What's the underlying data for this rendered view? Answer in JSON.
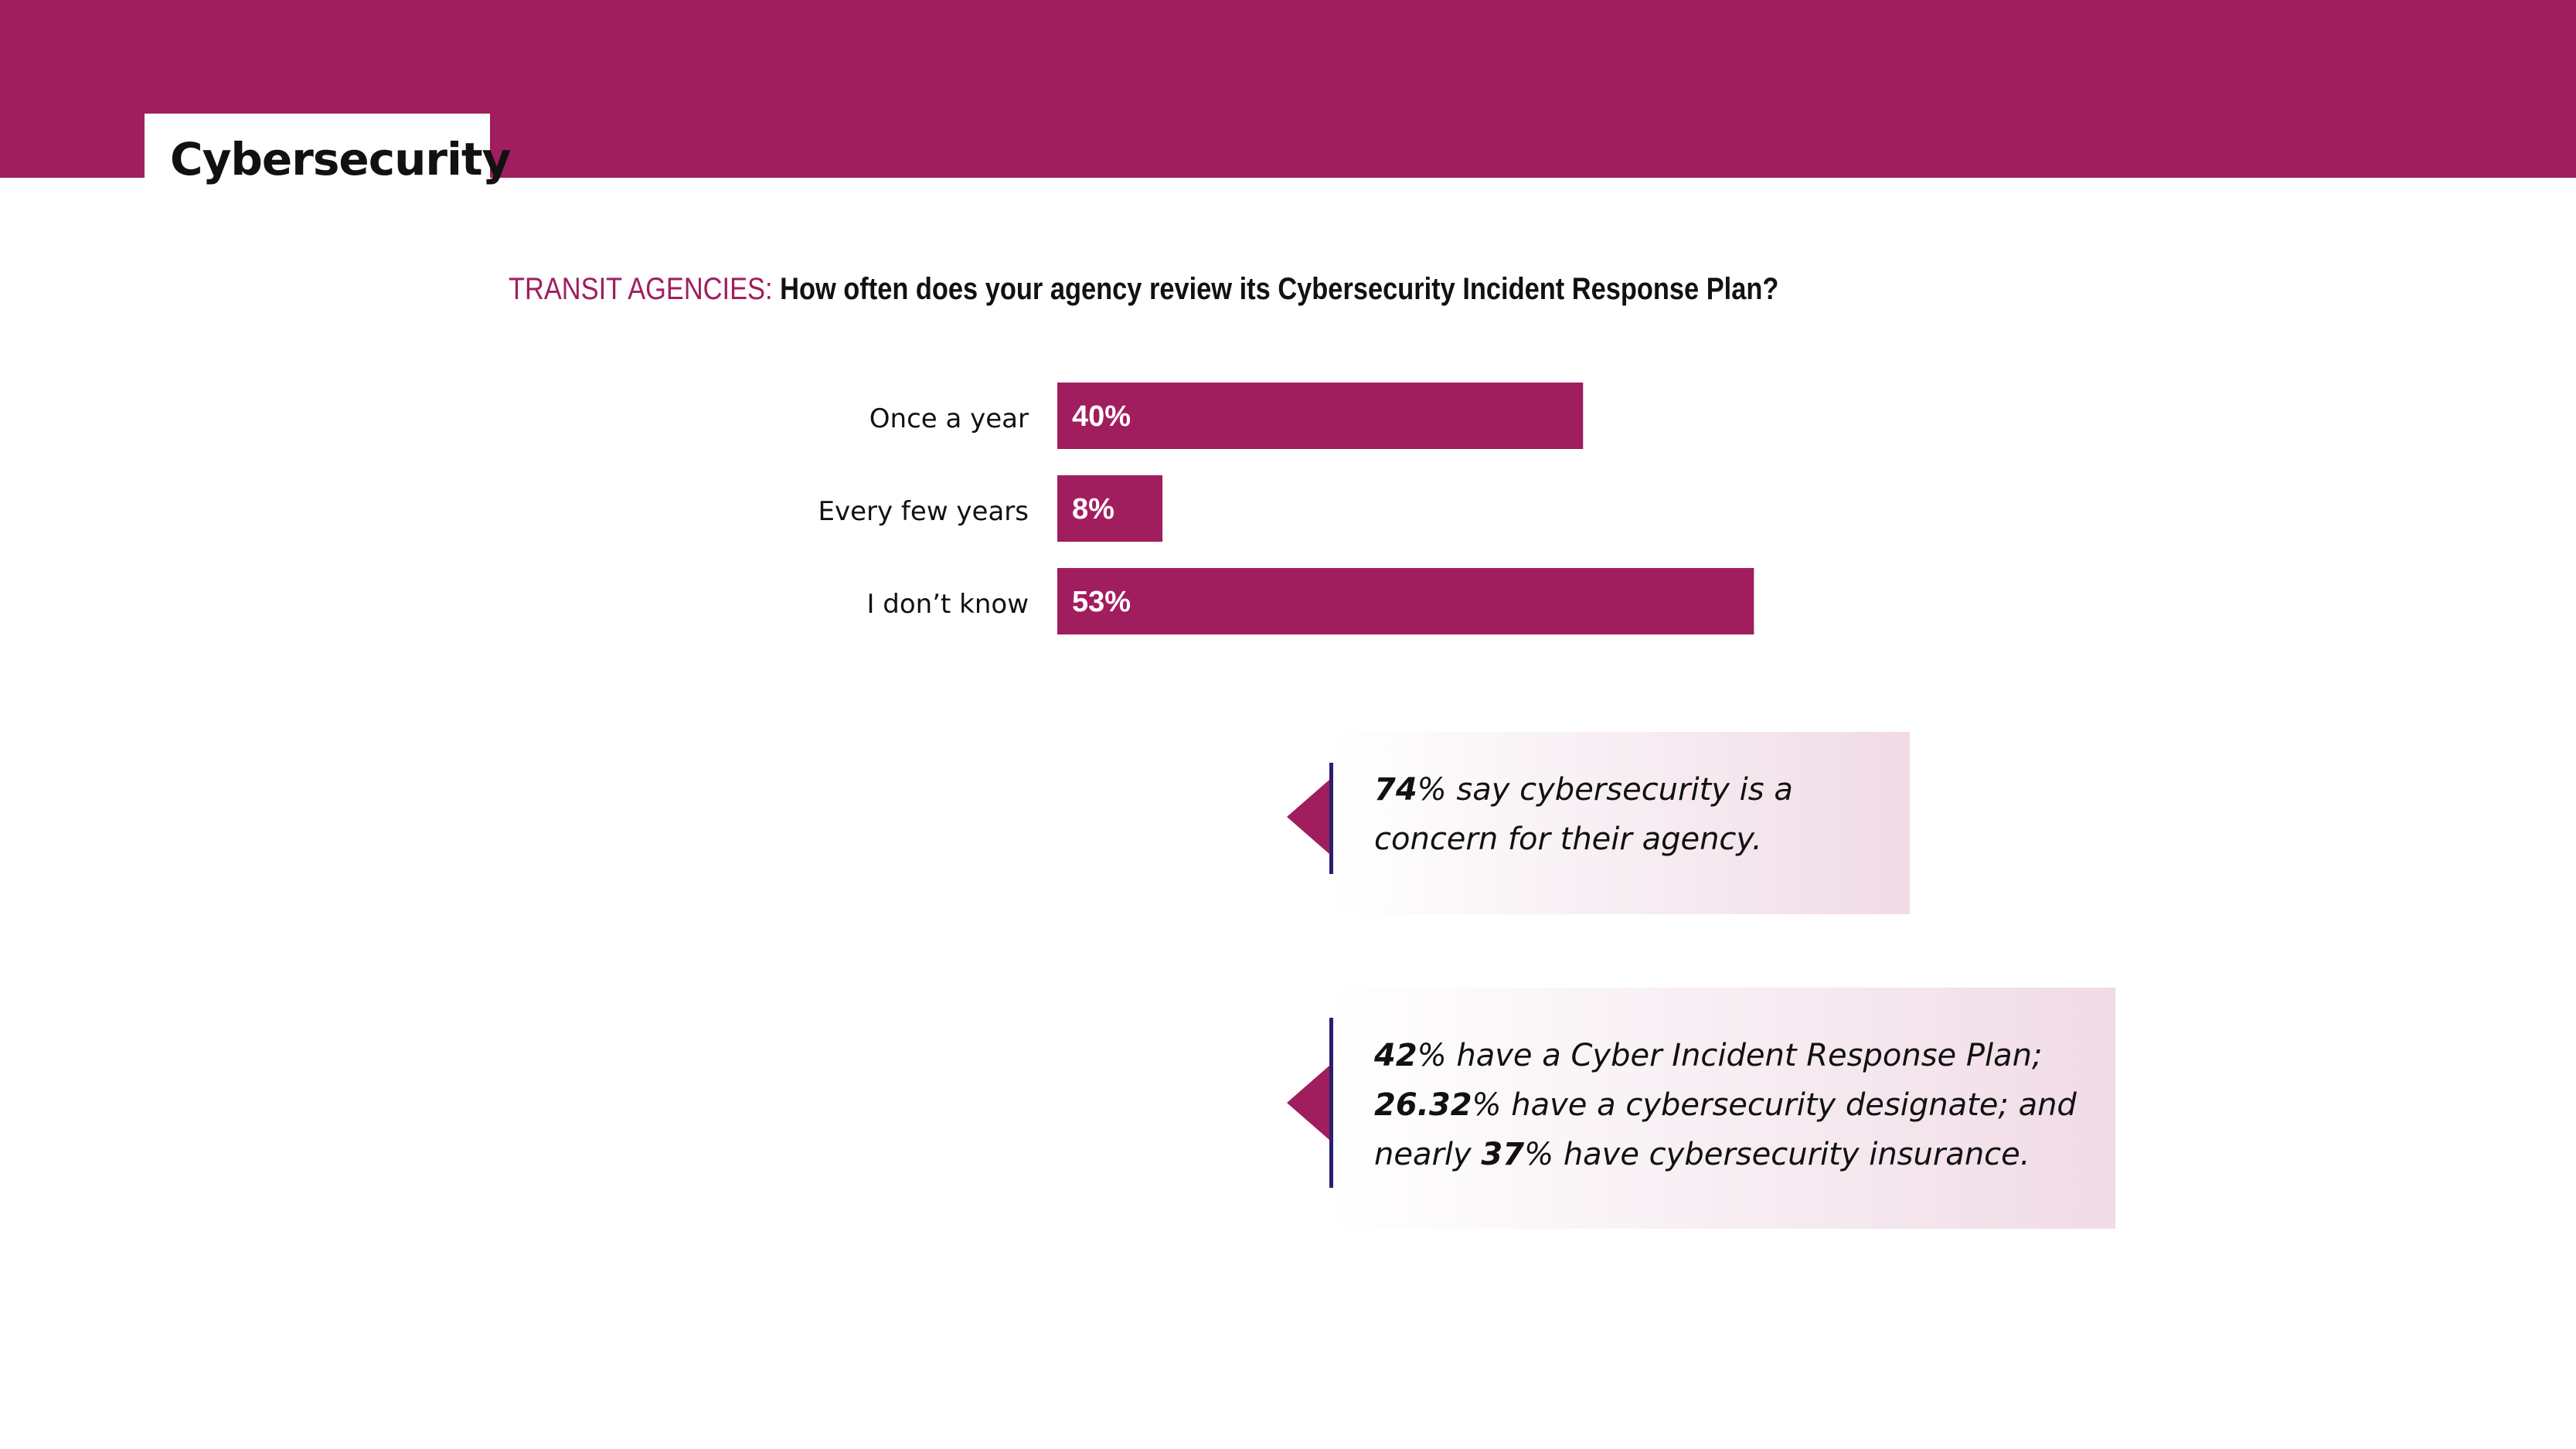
{
  "page": {
    "title": "Cybersecurity"
  },
  "colors": {
    "accent": "#a01e5e",
    "callout_line": "#2b1f6e",
    "text": "#111111"
  },
  "chart_data": {
    "type": "bar",
    "orientation": "horizontal",
    "title_prefix": "TRANSIT AGENCIES:",
    "title": "How often does your agency review its Cybersecurity Incident Response Plan?",
    "categories": [
      "Once a year",
      "Every few years",
      "I don’t know"
    ],
    "values": [
      40,
      8,
      53
    ],
    "value_labels": [
      "40%",
      "8%",
      "53%"
    ],
    "xlim": [
      0,
      53
    ],
    "grid": false,
    "legend": "none"
  },
  "callouts": [
    {
      "lines": [
        [
          {
            "bold": true,
            "text": "74"
          },
          {
            "bold": false,
            "text": "% say cybersecurity is a"
          }
        ],
        [
          {
            "bold": false,
            "text": "concern for their agency."
          }
        ]
      ]
    },
    {
      "lines": [
        [
          {
            "bold": true,
            "text": "42"
          },
          {
            "bold": false,
            "text": "% have a Cyber Incident Response Plan;"
          }
        ],
        [
          {
            "bold": true,
            "text": "26.32"
          },
          {
            "bold": false,
            "text": "% have a cybersecurity designate; and"
          }
        ],
        [
          {
            "bold": false,
            "text": "nearly "
          },
          {
            "bold": true,
            "text": "37"
          },
          {
            "bold": false,
            "text": "% have cybersecurity insurance."
          }
        ]
      ]
    }
  ]
}
